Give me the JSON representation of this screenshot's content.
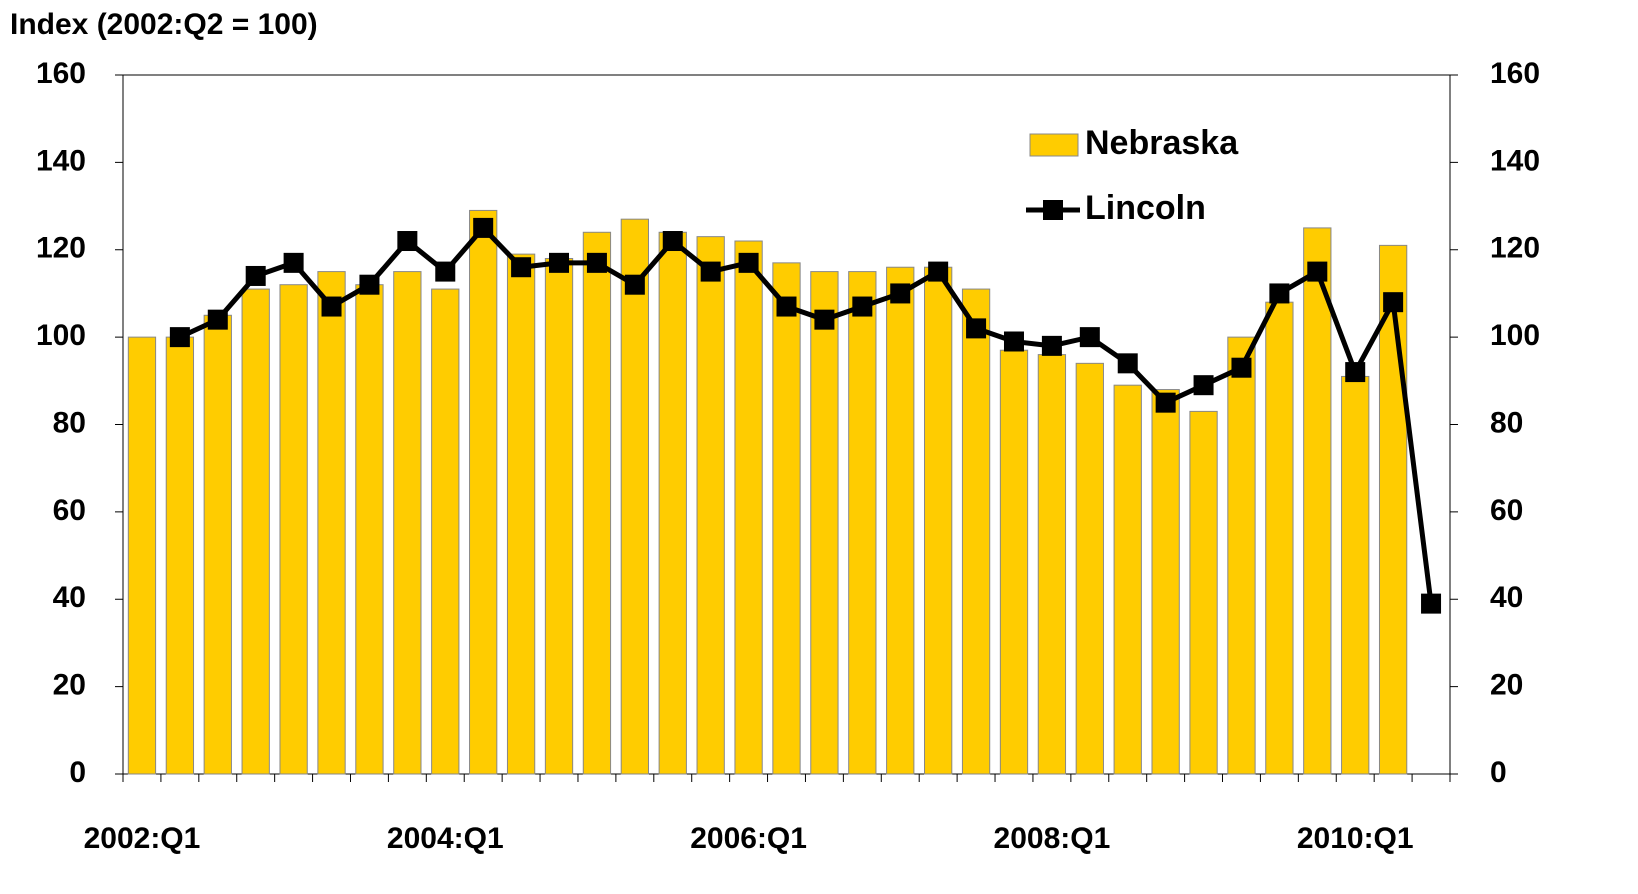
{
  "chart_data": {
    "type": "bar-line",
    "title": "Index (2002:Q2 = 100)",
    "categories": [
      "2002:Q1",
      null,
      null,
      null,
      null,
      null,
      null,
      null,
      "2004:Q1",
      null,
      null,
      null,
      null,
      null,
      null,
      null,
      "2006:Q1",
      null,
      null,
      null,
      null,
      null,
      null,
      null,
      "2008:Q1",
      null,
      null,
      null,
      null,
      null,
      null,
      null,
      "2010:Q1",
      null,
      null
    ],
    "series": [
      {
        "name": "Nebraska",
        "type": "bar",
        "color": "#ffcc00",
        "values": [
          100,
          100,
          105,
          111,
          112,
          115,
          112,
          115,
          111,
          129,
          119,
          118,
          124,
          127,
          124,
          123,
          122,
          117,
          115,
          115,
          116,
          116,
          111,
          97,
          96,
          94,
          89,
          88,
          83,
          100,
          108,
          125,
          91,
          121,
          null
        ]
      },
      {
        "name": "Lincoln",
        "type": "line",
        "axis": "y2",
        "color": "#000000",
        "values": [
          null,
          100,
          104,
          114,
          117,
          107,
          112,
          122,
          115,
          125,
          116,
          117,
          117,
          112,
          122,
          115,
          117,
          107,
          104,
          107,
          110,
          115,
          102,
          99,
          98,
          100,
          94,
          85,
          89,
          93,
          110,
          115,
          92,
          108,
          39
        ]
      }
    ],
    "ylim": [
      0,
      160
    ],
    "yticks": [
      0,
      20,
      40,
      60,
      80,
      100,
      120,
      140,
      160
    ],
    "y2lim": [
      0,
      160
    ],
    "y2ticks": [
      0,
      20,
      40,
      60,
      80,
      100,
      120,
      140,
      160
    ],
    "legend": "top-right",
    "grid": false
  }
}
